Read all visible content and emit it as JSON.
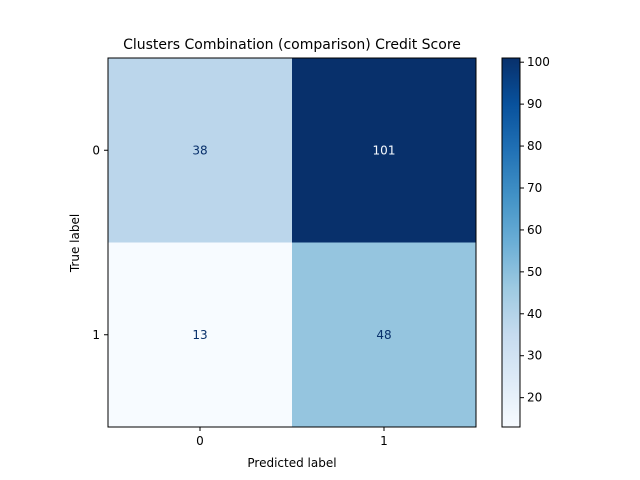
{
  "chart_data": {
    "type": "heatmap",
    "title": "Clusters Combination (comparison) Credit Score",
    "xlabel": "Predicted label",
    "ylabel": "True label",
    "x_categories": [
      "0",
      "1"
    ],
    "y_categories": [
      "0",
      "1"
    ],
    "values": [
      [
        38,
        101
      ],
      [
        13,
        48
      ]
    ],
    "colormap": "Blues",
    "colorbar": {
      "min": 13,
      "max": 101,
      "ticks": [
        "20",
        "30",
        "40",
        "50",
        "60",
        "70",
        "80",
        "90",
        "100"
      ]
    },
    "cell_text_color_light": "#08306b",
    "cell_text_color_dark": "#f7fbff"
  }
}
